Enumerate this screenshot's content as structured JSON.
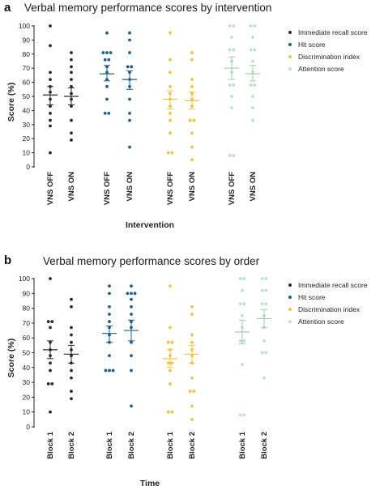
{
  "colors": {
    "immediate_recall": "#2b2b2b",
    "hit_score": "#1f5f8b",
    "discrimination_index": "#f2c43d",
    "attention_score": "#b9e3c4"
  },
  "chart_data": [
    {
      "type": "scatter",
      "panel_label": "a",
      "title": "Verbal memory performance scores by intervention",
      "xlabel": "Intervention",
      "ylabel": "Score (%)",
      "ylim": [
        0,
        100
      ],
      "yticks": [
        0,
        10,
        20,
        30,
        40,
        50,
        60,
        70,
        80,
        90,
        100
      ],
      "legend_position": "right",
      "categories": [
        "VNS OFF",
        "VNS ON",
        "VNS OFF",
        "VNS ON",
        "VNS OFF",
        "VNS ON",
        "VNS OFF",
        "VNS ON"
      ],
      "series": [
        {
          "name": "Immediate recall score",
          "color_key": "immediate_recall",
          "groups": [
            {
              "category_index": 0,
              "mean": 51,
              "error": [
                44,
                57
              ],
              "points": [
                100,
                86,
                67,
                62,
                57,
                53,
                48,
                43,
                38,
                33,
                29,
                10
              ]
            },
            {
              "category_index": 1,
              "mean": 50,
              "error": [
                44,
                56
              ],
              "points": [
                81,
                76,
                71,
                67,
                62,
                57,
                52,
                48,
                43,
                33,
                24,
                19
              ]
            }
          ]
        },
        {
          "name": "Hit score",
          "color_key": "hit_score",
          "groups": [
            {
              "category_index": 2,
              "mean": 66,
              "error": [
                61,
                72
              ],
              "points": [
                95,
                81,
                81,
                81,
                76,
                76,
                71,
                67,
                62,
                57,
                48,
                38,
                38
              ]
            },
            {
              "category_index": 3,
              "mean": 62,
              "error": [
                55,
                68
              ],
              "points": [
                95,
                90,
                81,
                71,
                71,
                67,
                62,
                57,
                48,
                38,
                33,
                14
              ]
            }
          ]
        },
        {
          "name": "Discrimination index",
          "color_key": "discrimination_index",
          "groups": [
            {
              "category_index": 4,
              "mean": 48,
              "error": [
                41,
                54
              ],
              "points": [
                95,
                76,
                67,
                57,
                52,
                48,
                43,
                38,
                33,
                24,
                10,
                10
              ]
            },
            {
              "category_index": 5,
              "mean": 47,
              "error": [
                41,
                53
              ],
              "points": [
                81,
                76,
                62,
                57,
                52,
                48,
                43,
                33,
                33,
                24,
                14,
                5
              ]
            }
          ]
        },
        {
          "name": "Attention score",
          "color_key": "attention_score",
          "groups": [
            {
              "category_index": 6,
              "mean": 70,
              "error": [
                62,
                78
              ],
              "points": [
                100,
                100,
                92,
                83,
                83,
                75,
                67,
                58,
                58,
                50,
                42,
                8,
                8
              ]
            },
            {
              "category_index": 7,
              "mean": 66,
              "error": [
                61,
                72
              ],
              "points": [
                100,
                100,
                92,
                83,
                83,
                75,
                67,
                58,
                58,
                50,
                42,
                33
              ]
            }
          ]
        }
      ]
    },
    {
      "type": "scatter",
      "panel_label": "b",
      "title": "Verbal memory performance scores by order",
      "xlabel": "Time",
      "ylabel": "Score (%)",
      "ylim": [
        0,
        100
      ],
      "yticks": [
        0,
        10,
        20,
        30,
        40,
        50,
        60,
        70,
        80,
        90,
        100
      ],
      "legend_position": "right",
      "categories": [
        "Block 1",
        "Block 2",
        "Block 1",
        "Block 2",
        "Block 1",
        "Block 2",
        "Block 1",
        "Block 2"
      ],
      "series": [
        {
          "name": "Immediate recall score",
          "color_key": "immediate_recall",
          "groups": [
            {
              "category_index": 0,
              "mean": 52,
              "error": [
                46,
                58
              ],
              "points": [
                100,
                71,
                71,
                67,
                57,
                52,
                48,
                43,
                38,
                29,
                29,
                10
              ]
            },
            {
              "category_index": 1,
              "mean": 49,
              "error": [
                43,
                55
              ],
              "points": [
                86,
                81,
                67,
                62,
                57,
                52,
                48,
                43,
                38,
                33,
                24,
                19
              ]
            }
          ]
        },
        {
          "name": "Hit score",
          "color_key": "hit_score",
          "groups": [
            {
              "category_index": 2,
              "mean": 63,
              "error": [
                57,
                68
              ],
              "points": [
                95,
                90,
                81,
                76,
                71,
                67,
                62,
                57,
                48,
                38,
                38,
                38
              ]
            },
            {
              "category_index": 3,
              "mean": 65,
              "error": [
                58,
                72
              ],
              "points": [
                95,
                90,
                90,
                90,
                86,
                81,
                76,
                71,
                67,
                57,
                48,
                38,
                14
              ]
            }
          ]
        },
        {
          "name": "Discrimination index",
          "color_key": "discrimination_index",
          "groups": [
            {
              "category_index": 4,
              "mean": 46,
              "error": [
                40,
                52
              ],
              "points": [
                95,
                67,
                57,
                57,
                52,
                48,
                43,
                43,
                38,
                29,
                10,
                10
              ]
            },
            {
              "category_index": 5,
              "mean": 49,
              "error": [
                43,
                55
              ],
              "points": [
                81,
                76,
                62,
                57,
                52,
                48,
                43,
                33,
                24,
                24,
                14,
                5
              ]
            }
          ]
        },
        {
          "name": "Attention score",
          "color_key": "attention_score",
          "groups": [
            {
              "category_index": 6,
              "mean": 64,
              "error": [
                56,
                72
              ],
              "points": [
                100,
                100,
                92,
                83,
                83,
                75,
                67,
                58,
                58,
                42,
                8,
                8
              ]
            },
            {
              "category_index": 7,
              "mean": 73,
              "error": [
                67,
                79
              ],
              "points": [
                100,
                100,
                92,
                92,
                83,
                83,
                75,
                67,
                58,
                50,
                50,
                33
              ]
            }
          ]
        }
      ]
    }
  ]
}
